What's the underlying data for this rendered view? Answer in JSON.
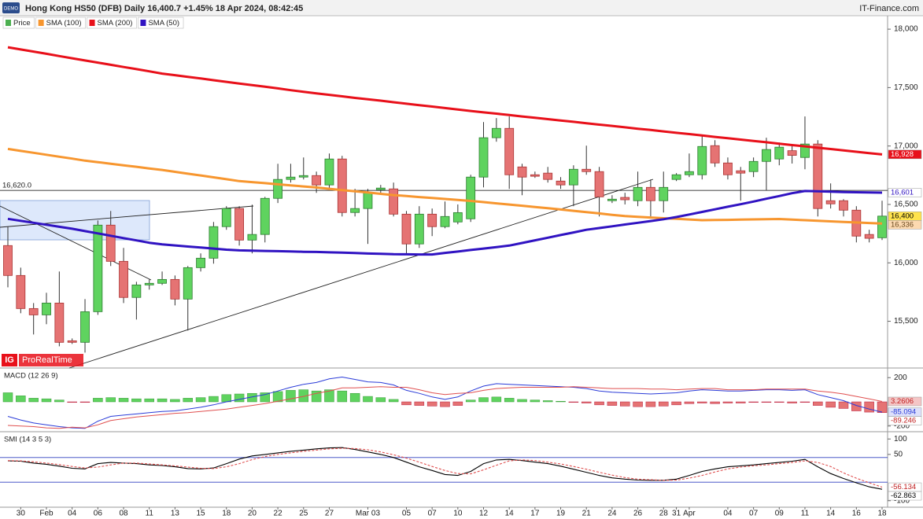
{
  "chart_data": [
    {
      "type": "candlestick",
      "title": "Hong Kong HS50 (DFB) Daily 16,400.7 +1.45% 18 Apr 2024, 08:42:45",
      "source": "IT-Finance.com",
      "badge": "DEMO",
      "logo": "IG",
      "watermark": "ProRealTime",
      "price_name": "Price",
      "price_color": "#4caf50",
      "up_color": "#5fd35f",
      "down_color": "#e57373",
      "categories": [
        null,
        "30",
        null,
        "Feb",
        null,
        "04",
        null,
        "06",
        null,
        "08",
        null,
        "11",
        null,
        "13",
        null,
        "15",
        null,
        "18",
        null,
        "20",
        null,
        "22",
        null,
        "25",
        null,
        "27",
        null,
        null,
        "Mar 03",
        null,
        null,
        "05",
        null,
        "07",
        null,
        "10",
        null,
        "12",
        null,
        "14",
        null,
        "17",
        null,
        "19",
        null,
        "21",
        null,
        "24",
        null,
        "26",
        null,
        "28",
        "31",
        "Apr",
        null,
        null,
        "04",
        null,
        "07",
        null,
        "09",
        null,
        "11",
        null,
        "14",
        null,
        "16",
        null,
        "18"
      ],
      "open": [
        16148,
        15892,
        15609,
        15555,
        15656,
        15333,
        15320,
        15582,
        16323,
        16013,
        15704,
        15811,
        15825,
        15858,
        15690,
        15959,
        16040,
        16310,
        16465,
        16195,
        16243,
        16552,
        16714,
        16734,
        16747,
        16667,
        16889,
        16431,
        16465,
        16626,
        16633,
        16417,
        16162,
        16417,
        16310,
        16350,
        16377,
        16734,
        17071,
        17151,
        16821,
        16754,
        16768,
        16700,
        16667,
        16801,
        16781,
        16532,
        16560,
        16532,
        16646,
        16532,
        16714,
        16754,
        16754,
        17003,
        16855,
        16788,
        16781,
        16868,
        16889,
        16960,
        16902,
        17017,
        16532,
        16532,
        16451,
        16243,
        16215
      ],
      "high": [
        16310,
        15959,
        15656,
        15744,
        15926,
        15353,
        15690,
        16363,
        16444,
        16128,
        15838,
        15858,
        15926,
        15892,
        15973,
        16081,
        16350,
        16485,
        16485,
        16498,
        16565,
        16848,
        16848,
        16902,
        16781,
        16936,
        16916,
        16633,
        16633,
        16667,
        16687,
        16444,
        16485,
        16465,
        16525,
        16500,
        16754,
        17205,
        17239,
        17253,
        16848,
        16781,
        16821,
        16734,
        16835,
        17003,
        16821,
        16579,
        16600,
        16781,
        16714,
        16781,
        16768,
        16936,
        17091,
        17050,
        16902,
        16821,
        16902,
        17071,
        17030,
        17003,
        17253,
        17050,
        16680,
        16545,
        16485,
        16283,
        16532
      ],
      "low": [
        15791,
        15569,
        15387,
        15475,
        15286,
        15306,
        15232,
        15555,
        15973,
        15656,
        15515,
        15771,
        15811,
        15636,
        15421,
        15926,
        15993,
        16283,
        16148,
        16081,
        16175,
        16512,
        16687,
        16714,
        16599,
        16633,
        16397,
        16397,
        16162,
        16599,
        16397,
        16081,
        16128,
        16229,
        16296,
        16330,
        16350,
        16646,
        17037,
        16633,
        16579,
        16727,
        16687,
        16633,
        16485,
        16754,
        16397,
        16512,
        16500,
        16485,
        16397,
        16431,
        16700,
        16734,
        16714,
        16821,
        16714,
        16532,
        16734,
        16619,
        16835,
        16850,
        16801,
        16397,
        16465,
        16397,
        16175,
        16175,
        16195
      ],
      "close": [
        15892,
        15609,
        15555,
        15656,
        15320,
        15320,
        15582,
        16323,
        16013,
        15704,
        15811,
        15825,
        15858,
        15690,
        15959,
        16040,
        16310,
        16465,
        16195,
        16243,
        16552,
        16714,
        16734,
        16747,
        16667,
        16889,
        16431,
        16465,
        16599,
        16640,
        16417,
        16162,
        16417,
        16310,
        16397,
        16430,
        16734,
        17071,
        17151,
        16754,
        16734,
        16741,
        16714,
        16667,
        16801,
        16781,
        16565,
        16545,
        16540,
        16646,
        16532,
        16646,
        16754,
        16781,
        16996,
        16855,
        16754,
        16768,
        16868,
        16970,
        16990,
        16920,
        17017,
        16465,
        16505,
        16451,
        16229,
        16210,
        16400
      ],
      "series": [
        {
          "name": "SMA (100)",
          "color": "#f7962f",
          "values": [
            16975,
            16958,
            16942,
            16925,
            16908,
            16892,
            16875,
            16862,
            16848,
            16835,
            16822,
            16808,
            16795,
            16779,
            16763,
            16748,
            16732,
            16716,
            16700,
            16691,
            16682,
            16672,
            16663,
            16654,
            16645,
            16634,
            16623,
            16612,
            16602,
            16591,
            16580,
            16572,
            16563,
            16555,
            16547,
            16538,
            16530,
            16520,
            16509,
            16499,
            16489,
            16478,
            16468,
            16457,
            16445,
            16434,
            16423,
            16411,
            16400,
            16394,
            16388,
            16382,
            16377,
            16371,
            16365,
            16367,
            16368,
            16370,
            16372,
            16373,
            16375,
            16370,
            16365,
            16360,
            16355,
            16350,
            16346,
            16341,
            16336
          ]
        },
        {
          "name": "SMA (200)",
          "color": "#e8101a",
          "values": [
            17845,
            17826,
            17808,
            17789,
            17770,
            17751,
            17732,
            17714,
            17695,
            17676,
            17658,
            17639,
            17620,
            17606,
            17592,
            17578,
            17563,
            17549,
            17535,
            17521,
            17507,
            17493,
            17478,
            17464,
            17450,
            17438,
            17425,
            17412,
            17400,
            17388,
            17375,
            17362,
            17350,
            17338,
            17325,
            17312,
            17300,
            17288,
            17277,
            17265,
            17253,
            17242,
            17230,
            17218,
            17207,
            17195,
            17183,
            17172,
            17160,
            17148,
            17137,
            17125,
            17113,
            17102,
            17090,
            17078,
            17067,
            17055,
            17043,
            17032,
            17020,
            17008,
            16997,
            16985,
            16974,
            16962,
            16951,
            16939,
            16928
          ]
        },
        {
          "name": "SMA (50)",
          "color": "#3013c2",
          "values": [
            16377,
            16360,
            16343,
            16326,
            16309,
            16292,
            16272,
            16252,
            16232,
            16212,
            16192,
            16172,
            16158,
            16149,
            16140,
            16131,
            16122,
            16113,
            16107,
            16105,
            16102,
            16100,
            16098,
            16095,
            16093,
            16090,
            16087,
            16084,
            16080,
            16077,
            16074,
            16073,
            16072,
            16072,
            16085,
            16097,
            16110,
            16122,
            16135,
            16148,
            16170,
            16193,
            16215,
            16238,
            16260,
            16283,
            16298,
            16313,
            16328,
            16343,
            16358,
            16373,
            16392,
            16414,
            16436,
            16458,
            16480,
            16502,
            16525,
            16549,
            16572,
            16596,
            16615,
            16612,
            16609,
            16606,
            16604,
            16602,
            16601
          ]
        }
      ],
      "ylim": [
        15100,
        18115
      ],
      "yticks": [
        {
          "value": 15500,
          "label": "15,500"
        },
        {
          "value": 16000,
          "label": "16,000"
        },
        {
          "value": 16500,
          "label": "16,500"
        },
        {
          "value": 17000,
          "label": "17,000"
        },
        {
          "value": 17500,
          "label": "17,500"
        },
        {
          "value": 18000,
          "label": "18,000"
        }
      ],
      "level": {
        "value": 16620,
        "label": "16,620.0"
      },
      "markers": [
        {
          "value": 16928,
          "label": "16,928",
          "color": "#e8101a",
          "text_color": "#ffffff"
        },
        {
          "value": 16601,
          "label": "16,601",
          "color": "#ffffff",
          "text_color": "#3013c2"
        },
        {
          "value": 16400,
          "label": "16,400",
          "color": "#ffe34d",
          "text_color": "#000000"
        },
        {
          "value": 16336,
          "label": "16,336",
          "color": "#fcd9b0",
          "text_color": "#6a4a20"
        }
      ]
    },
    {
      "type": "macd",
      "title": "MACD (12 26 9)",
      "histogram": {
        "up_color": "#5fd35f",
        "down_color": "#e57373",
        "values": [
          75,
          50,
          30,
          25,
          15,
          -5,
          -5,
          30,
          35,
          30,
          25,
          25,
          25,
          20,
          30,
          35,
          45,
          60,
          65,
          70,
          75,
          85,
          95,
          100,
          90,
          100,
          90,
          70,
          45,
          35,
          20,
          -25,
          -30,
          -35,
          -40,
          -30,
          15,
          35,
          40,
          30,
          20,
          15,
          10,
          5,
          -5,
          -10,
          -25,
          -30,
          -35,
          -40,
          -40,
          -35,
          -25,
          -15,
          -10,
          -15,
          -10,
          -10,
          -5,
          -5,
          -5,
          -10,
          -5,
          -30,
          -45,
          -55,
          -75,
          -85,
          -89.246
        ]
      },
      "series": [
        {
          "color": "#2a3bd8",
          "values": [
            -120,
            -150,
            -175,
            -190,
            -205,
            -215,
            -220,
            -160,
            -120,
            -110,
            -100,
            -90,
            -80,
            -75,
            -60,
            -45,
            -25,
            0,
            20,
            40,
            60,
            90,
            120,
            145,
            160,
            190,
            205,
            185,
            165,
            160,
            140,
            95,
            70,
            40,
            20,
            40,
            90,
            130,
            150,
            145,
            140,
            135,
            130,
            125,
            120,
            110,
            90,
            80,
            75,
            70,
            65,
            70,
            75,
            90,
            100,
            95,
            90,
            90,
            95,
            100,
            100,
            95,
            100,
            60,
            35,
            10,
            -30,
            -60,
            -85.094
          ]
        },
        {
          "color": "#e05050",
          "values": [
            -195,
            -200,
            -205,
            -215,
            -220,
            -210,
            -215,
            -190,
            -155,
            -140,
            -125,
            -115,
            -105,
            -95,
            -90,
            -80,
            -70,
            -60,
            -45,
            -30,
            -15,
            5,
            25,
            45,
            70,
            90,
            115,
            115,
            120,
            125,
            120,
            120,
            100,
            75,
            60,
            70,
            75,
            95,
            110,
            115,
            120,
            120,
            120,
            120,
            125,
            120,
            115,
            110,
            110,
            110,
            105,
            105,
            100,
            105,
            110,
            110,
            100,
            100,
            100,
            105,
            105,
            105,
            105,
            90,
            80,
            65,
            45,
            25,
            3.2606
          ]
        }
      ],
      "ylim": [
        -247,
        273
      ],
      "yticks": [
        200,
        -200
      ],
      "markers": [
        {
          "value": 3.2606,
          "color": "#f4c6c6",
          "text_color": "#c02020"
        },
        {
          "value": -85.094,
          "color": "#dde0fb",
          "text_color": "#2a3bd8"
        },
        {
          "value": -89.246,
          "color": "#ffffff",
          "text_color": "#c02020"
        }
      ]
    },
    {
      "type": "line",
      "title": "SMI (14 3 5 3)",
      "series": [
        {
          "color": "#000000",
          "dash": false,
          "values": [
            29,
            28,
            22,
            18,
            12,
            5,
            3,
            20,
            24,
            22,
            20,
            16,
            14,
            10,
            4,
            3,
            6,
            20,
            35,
            45,
            50,
            55,
            60,
            64,
            68,
            71,
            72,
            66,
            58,
            50,
            40,
            25,
            10,
            -2,
            -15,
            -18,
            -5,
            20,
            32,
            34,
            30,
            25,
            20,
            12,
            2,
            -8,
            -18,
            -26,
            -30,
            -33,
            -34,
            -34,
            -30,
            -18,
            -5,
            3,
            10,
            13,
            16,
            20,
            24,
            28,
            34,
            10,
            -12,
            -28,
            -42,
            -55,
            -62.863
          ]
        },
        {
          "color": "#e05050",
          "dash": true,
          "values": [
            30,
            29,
            26,
            22,
            17,
            11,
            6,
            9,
            16,
            22,
            22,
            19,
            16,
            13,
            9,
            5,
            4,
            10,
            20,
            33,
            43,
            50,
            55,
            60,
            64,
            68,
            70,
            69,
            65,
            58,
            49,
            38,
            25,
            11,
            -2,
            -12,
            -13,
            0,
            15,
            29,
            32,
            30,
            25,
            19,
            11,
            2,
            -8,
            -17,
            -25,
            -30,
            -32,
            -34,
            -33,
            -27,
            -18,
            -7,
            3,
            9,
            13,
            16,
            20,
            24,
            29,
            24,
            11,
            -10,
            -27,
            -42,
            -56.134
          ]
        }
      ],
      "ylim": [
        -121,
        121
      ],
      "yticks": [
        100,
        50,
        -100
      ],
      "bands": [
        40,
        -40
      ],
      "band_color": "#3040c0",
      "markers": [
        {
          "value": -56.134,
          "color": "#ffffff",
          "text_color": "#c02020"
        },
        {
          "value": -62.863,
          "color": "#ffffff",
          "text_color": "#000000"
        }
      ]
    }
  ]
}
